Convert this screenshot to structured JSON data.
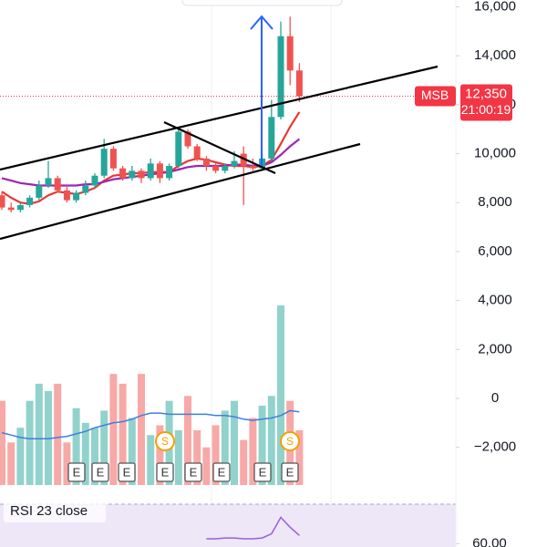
{
  "chart_data": {
    "type": "candlestick",
    "ylim": [
      -3540,
      16280
    ],
    "yticks": [
      {
        "value": 16000,
        "label": "16,000"
      },
      {
        "value": 14000,
        "label": "14,000"
      },
      {
        "value": 12000,
        "label": "12,000"
      },
      {
        "value": 10000,
        "label": "10,000"
      },
      {
        "value": 8000,
        "label": "8,000"
      },
      {
        "value": 6000,
        "label": "6,000"
      },
      {
        "value": 4000,
        "label": "4,000"
      },
      {
        "value": 2000,
        "label": "2,000"
      },
      {
        "value": 0,
        "label": "0"
      },
      {
        "value": -2000,
        "label": "−2,000"
      }
    ],
    "up_color": "#26a69a",
    "down_color": "#ef5350",
    "open": [
      8300,
      7800,
      7700,
      7900,
      8200,
      8700,
      9000,
      8500,
      8100,
      8400,
      8700,
      9100,
      10200,
      9400,
      9000,
      9300,
      9000,
      9600,
      9000,
      9500,
      10900,
      10300,
      9800,
      9500,
      9300,
      9500,
      10000,
      9500,
      9400,
      9800,
      11500,
      14800,
      13400
    ],
    "high": [
      8400,
      8000,
      8000,
      8300,
      8900,
      9700,
      9100,
      8700,
      8500,
      8900,
      9200,
      10600,
      10300,
      9500,
      9500,
      9400,
      9800,
      9700,
      9600,
      11100,
      11000,
      10400,
      9900,
      9600,
      9600,
      10100,
      10300,
      9800,
      10000,
      12200,
      15400,
      15600,
      13700
    ],
    "low": [
      7700,
      7600,
      7600,
      7800,
      8100,
      8600,
      8400,
      8000,
      8000,
      8300,
      8600,
      9000,
      9300,
      8900,
      8900,
      8800,
      8900,
      8800,
      8900,
      9400,
      10200,
      9700,
      9300,
      9200,
      9200,
      9400,
      7900,
      9300,
      9300,
      9700,
      11400,
      12800,
      12100
    ],
    "close": [
      7800,
      7700,
      7900,
      8200,
      8700,
      9000,
      8500,
      8100,
      8400,
      8700,
      9100,
      10200,
      9400,
      9000,
      9300,
      9000,
      9600,
      9000,
      9500,
      10900,
      10300,
      9800,
      9500,
      9300,
      9500,
      9700,
      9500,
      9400,
      9800,
      11500,
      14800,
      13400,
      12350
    ],
    "series": [
      {
        "color": "#e53935",
        "values": [
          8450,
          8200,
          8000,
          7950,
          8050,
          8300,
          8450,
          8400,
          8350,
          8450,
          8600,
          8900,
          9100,
          9150,
          9200,
          9200,
          9250,
          9250,
          9250,
          9500,
          9700,
          9800,
          9750,
          9650,
          9550,
          9500,
          9500,
          9450,
          9500,
          9750,
          10400,
          11100,
          11700
        ]
      },
      {
        "color": "#9c27b0",
        "values": [
          9000,
          8900,
          8800,
          8750,
          8700,
          8700,
          8700,
          8700,
          8700,
          8750,
          8750,
          8850,
          8950,
          9000,
          9050,
          9100,
          9150,
          9200,
          9250,
          9350,
          9450,
          9500,
          9500,
          9500,
          9500,
          9550,
          9550,
          9500,
          9500,
          9650,
          9950,
          10300,
          10600
        ]
      }
    ],
    "volume": {
      "up_color": "#92d2cc",
      "down_color": "#f7a9a7",
      "ma_color": "#3f7fe0",
      "values": [
        -100,
        -1800,
        -1200,
        -100,
        600,
        300,
        600,
        -1800,
        -400,
        -1000,
        -1200,
        -500,
        1000,
        600,
        -800,
        1000,
        -1500,
        -1100,
        -100,
        -1300,
        100,
        -1300,
        -2000,
        -1100,
        -500,
        -100,
        -1700,
        -800,
        -300,
        100,
        3800,
        -100,
        -1300
      ],
      "ma": [
        -1400,
        -1500,
        -1600,
        -1650,
        -1650,
        -1650,
        -1600,
        -1550,
        -1450,
        -1350,
        -1200,
        -1100,
        -1000,
        -950,
        -850,
        -700,
        -600,
        -600,
        -650,
        -650,
        -650,
        -650,
        -650,
        -700,
        -700,
        -750,
        -850,
        -900,
        -850,
        -800,
        -700,
        -500,
        -550
      ]
    },
    "price_tag": {
      "symbol": "MSB",
      "value": 12350,
      "label": "12,350",
      "timer": "21:00:19",
      "color": "#f23645"
    },
    "events": [
      "E",
      "E",
      "E",
      "E",
      "E",
      "E",
      "E",
      "E"
    ],
    "dividends": [
      "S",
      "S"
    ],
    "rsi": {
      "title": "RSI 23 close",
      "color": "#9c5fd6",
      "ylim": [
        58,
        84
      ],
      "yticks": [
        {
          "value": 60,
          "label": "60.00"
        }
      ],
      "values": [
        null,
        null,
        null,
        null,
        null,
        null,
        null,
        null,
        null,
        null,
        null,
        null,
        null,
        null,
        null,
        null,
        null,
        null,
        null,
        null,
        null,
        null,
        63,
        63,
        63.5,
        63.5,
        63,
        63,
        63.5,
        66,
        76,
        70,
        65
      ]
    }
  }
}
